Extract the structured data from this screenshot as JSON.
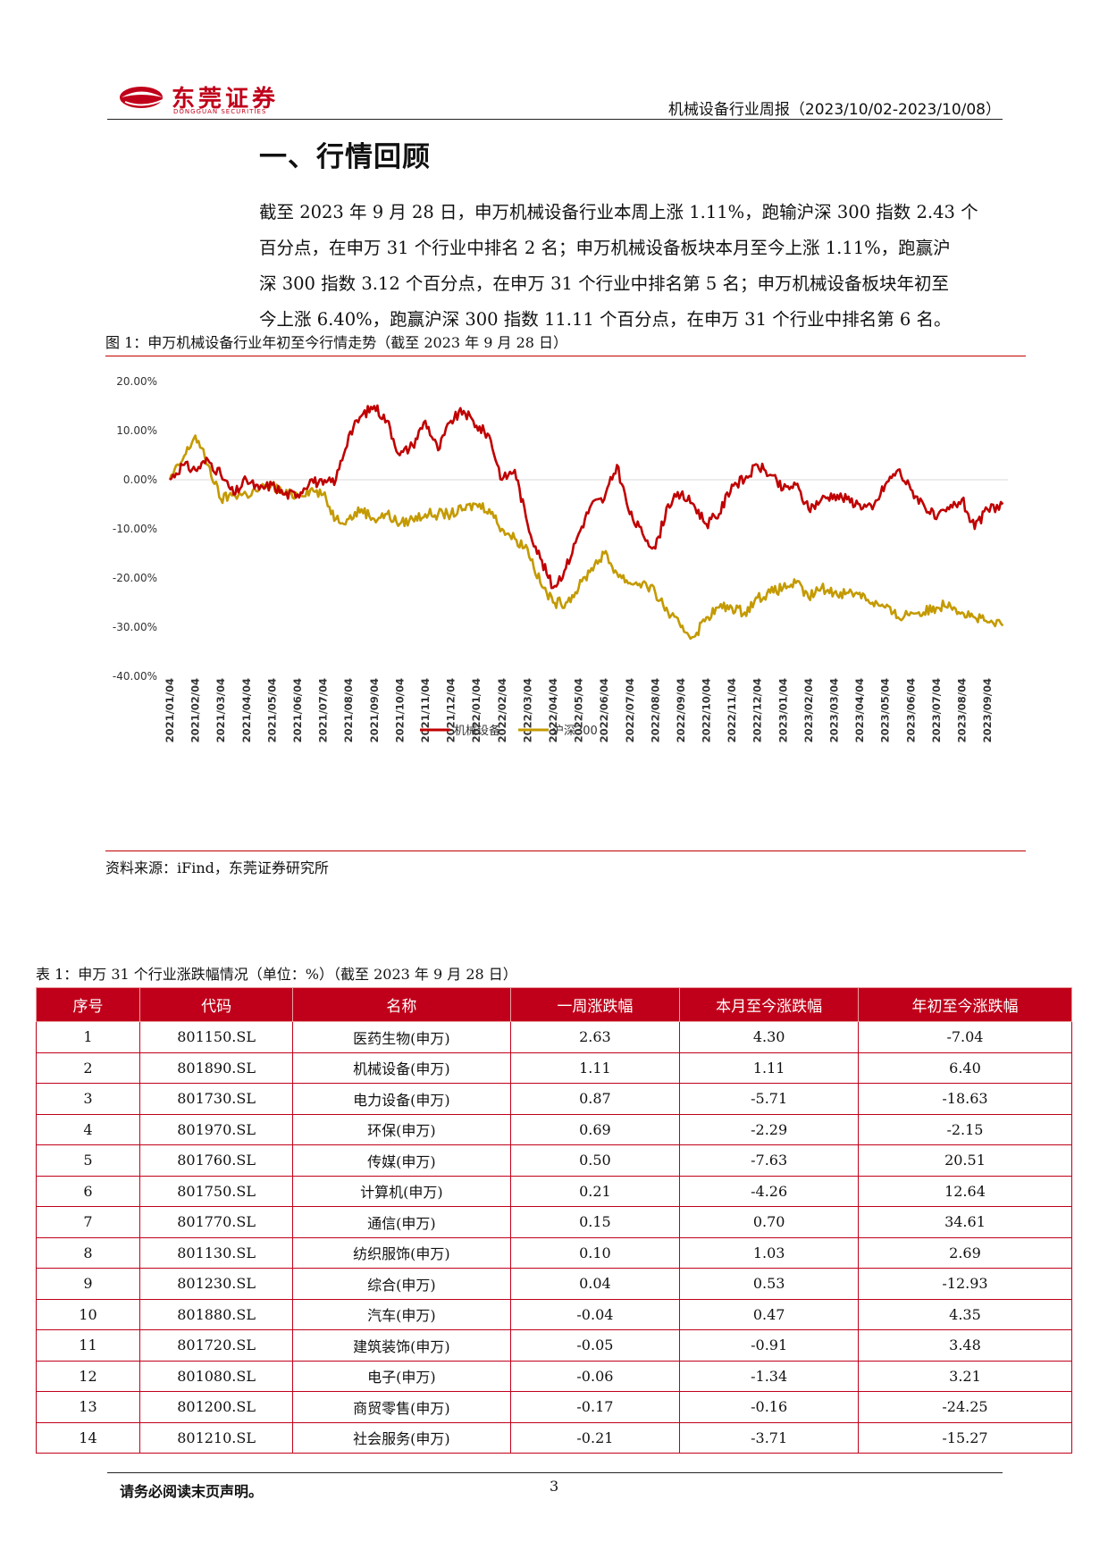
{
  "header": {
    "company_cn": "东莞证券",
    "company_en": "DONGGUAN SECURITIES",
    "title": "机械设备行业周报（2023/10/02-2023/10/08）",
    "brand_color": "#c0001a"
  },
  "section": {
    "title": "一、行情回顾",
    "paragraph": [
      "截至 2023 年 9 月 28 日，申万机械设备行业本周上涨 1.11%，跑输沪深 300 指数 2.43 个",
      "百分点，在申万 31 个行业中排名 2 名；申万机械设备板块本月至今上涨 1.11%，跑赢沪",
      "深 300 指数 3.12 个百分点，在申万 31 个行业中排名第 5 名；申万机械设备板块年初至",
      "今上涨 6.40%，跑赢沪深 300 指数 11.11 个百分点，在申万 31 个行业中排名第 6 名。"
    ]
  },
  "figure": {
    "caption": "图   1：申万机械设备行业年初至今行情走势（截至 2023 年 9 月 28 日）",
    "source": "资料来源：iFind，东莞证券研究所"
  },
  "chart_data": {
    "type": "line",
    "title": "",
    "xlabel": "",
    "ylabel": "",
    "ylim": [
      -40,
      20
    ],
    "yticks": [
      "20.00%",
      "10.00%",
      "0.00%",
      "-10.00%",
      "-20.00%",
      "-30.00%",
      "-40.00%"
    ],
    "ytick_values": [
      20,
      10,
      0,
      -10,
      -20,
      -30,
      -40
    ],
    "xticks": [
      "2021/01/04",
      "2021/02/04",
      "2021/03/04",
      "2021/04/04",
      "2021/05/04",
      "2021/06/04",
      "2021/07/04",
      "2021/08/04",
      "2021/09/04",
      "2021/10/04",
      "2021/11/04",
      "2021/12/04",
      "2022/01/04",
      "2022/02/04",
      "2022/03/04",
      "2022/04/04",
      "2022/05/04",
      "2022/06/04",
      "2022/07/04",
      "2022/08/04",
      "2022/09/04",
      "2022/10/04",
      "2022/11/04",
      "2022/12/04",
      "2023/01/04",
      "2023/02/04",
      "2023/03/04",
      "2023/04/04",
      "2023/05/04",
      "2023/06/04",
      "2023/07/04",
      "2023/08/04",
      "2023/09/04"
    ],
    "grid": false,
    "legend_position": "bottom",
    "x_month_index": [
      0,
      0.5,
      1,
      1.5,
      2,
      2.5,
      3,
      3.5,
      4,
      4.5,
      5,
      5.5,
      6,
      6.5,
      7,
      7.5,
      8,
      8.5,
      9,
      9.5,
      10,
      10.5,
      11,
      11.5,
      12,
      12.5,
      13,
      13.5,
      14,
      14.5,
      15,
      15.5,
      16,
      16.5,
      17,
      17.5,
      18,
      18.5,
      19,
      19.5,
      20,
      20.5,
      21,
      21.5,
      22,
      22.5,
      23,
      23.5,
      24,
      24.5,
      25,
      25.5,
      26,
      26.5,
      27,
      27.5,
      28,
      28.5,
      29,
      29.5,
      30,
      30.5,
      31,
      31.5,
      32,
      32.6
    ],
    "series": [
      {
        "name": "机械设备",
        "color": "#c00000",
        "values": [
          0,
          3,
          2,
          4,
          1,
          -3,
          0,
          -2,
          -1,
          -3,
          -3,
          0,
          -1,
          0,
          9,
          13,
          15,
          12,
          5,
          7,
          12,
          6,
          12,
          14,
          11,
          9,
          0,
          2,
          -9,
          -16,
          -22,
          -18,
          -11,
          -5,
          -4,
          3,
          -7,
          -11,
          -14,
          -5,
          -3,
          -5,
          -9,
          -7,
          -1,
          0,
          3,
          1,
          -2,
          -1,
          -6,
          -4,
          -3,
          -4,
          -5,
          -6,
          -1,
          2,
          -2,
          -5,
          -8,
          -6,
          -4,
          -10,
          -6,
          -5
        ]
      },
      {
        "name": "沪深300",
        "color": "#c49a00",
        "values": [
          0,
          4,
          9,
          3,
          -4,
          -3,
          -3,
          -2,
          -1,
          -3,
          -3,
          -2,
          -3,
          -8,
          -8,
          -6,
          -8,
          -7,
          -9,
          -8,
          -7,
          -7,
          -7,
          -6,
          -5,
          -6,
          -10,
          -12,
          -14,
          -21,
          -25,
          -25,
          -22,
          -18,
          -15,
          -19,
          -21,
          -21,
          -23,
          -27,
          -30,
          -32,
          -28,
          -26,
          -26,
          -27,
          -24,
          -23,
          -22,
          -21,
          -24,
          -22,
          -23,
          -23,
          -23,
          -25,
          -26,
          -28,
          -27,
          -27,
          -26,
          -25,
          -27,
          -28,
          -29,
          -29.7
        ]
      }
    ]
  },
  "table": {
    "caption": "表   1：申万 31 个行业涨跌幅情况（单位：%）（截至 2023 年 9 月 28 日）",
    "headers": [
      "序号",
      "代码",
      "名称",
      "一周涨跌幅",
      "本月至今涨跌幅",
      "年初至今涨跌幅"
    ],
    "rows": [
      [
        "1",
        "801150.SL",
        "医药生物(申万)",
        "2.63",
        "4.30",
        "-7.04"
      ],
      [
        "2",
        "801890.SL",
        "机械设备(申万)",
        "1.11",
        "1.11",
        "6.40"
      ],
      [
        "3",
        "801730.SL",
        "电力设备(申万)",
        "0.87",
        "-5.71",
        "-18.63"
      ],
      [
        "4",
        "801970.SL",
        "环保(申万)",
        "0.69",
        "-2.29",
        "-2.15"
      ],
      [
        "5",
        "801760.SL",
        "传媒(申万)",
        "0.50",
        "-7.63",
        "20.51"
      ],
      [
        "6",
        "801750.SL",
        "计算机(申万)",
        "0.21",
        "-4.26",
        "12.64"
      ],
      [
        "7",
        "801770.SL",
        "通信(申万)",
        "0.15",
        "0.70",
        "34.61"
      ],
      [
        "8",
        "801130.SL",
        "纺织服饰(申万)",
        "0.10",
        "1.03",
        "2.69"
      ],
      [
        "9",
        "801230.SL",
        "综合(申万)",
        "0.04",
        "0.53",
        "-12.93"
      ],
      [
        "10",
        "801880.SL",
        "汽车(申万)",
        "-0.04",
        "0.47",
        "4.35"
      ],
      [
        "11",
        "801720.SL",
        "建筑装饰(申万)",
        "-0.05",
        "-0.91",
        "3.48"
      ],
      [
        "12",
        "801080.SL",
        "电子(申万)",
        "-0.06",
        "-1.34",
        "3.21"
      ],
      [
        "13",
        "801200.SL",
        "商贸零售(申万)",
        "-0.17",
        "-0.16",
        "-24.25"
      ],
      [
        "14",
        "801210.SL",
        "社会服务(申万)",
        "-0.21",
        "-3.71",
        "-15.27"
      ]
    ]
  },
  "footer": {
    "note": "请务必阅读末页声明。",
    "page": "3"
  }
}
